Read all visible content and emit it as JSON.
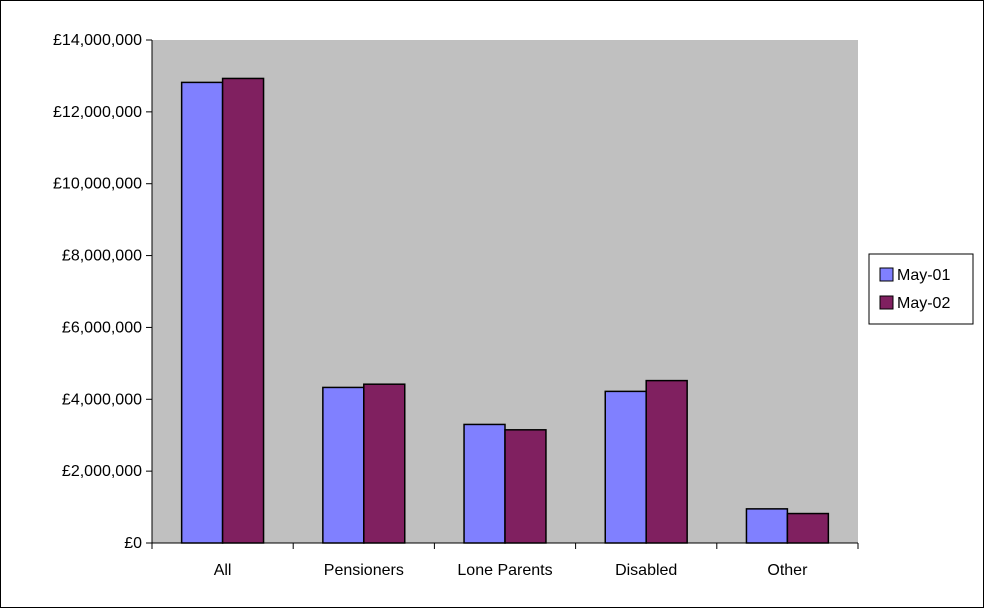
{
  "colors": {
    "plot_background": "#c0c0c0",
    "page_background": "#ffffff",
    "border": "#000000"
  },
  "chart_data": {
    "type": "bar",
    "title": "",
    "xlabel": "",
    "ylabel": "",
    "categories": [
      "All",
      "Pensioners",
      "Lone Parents",
      "Disabled",
      "Other"
    ],
    "series": [
      {
        "name": "May-01",
        "color": "#8080ff",
        "values": [
          12820000,
          4330000,
          3300000,
          4220000,
          950000
        ]
      },
      {
        "name": "May-02",
        "color": "#802060",
        "values": [
          12930000,
          4420000,
          3150000,
          4520000,
          820000
        ]
      }
    ],
    "ylim": [
      0,
      14000000
    ],
    "ytick_step": 2000000,
    "ytick_labels": [
      "£0",
      "£2,000,000",
      "£4,000,000",
      "£6,000,000",
      "£8,000,000",
      "£10,000,000",
      "£12,000,000",
      "£14,000,000"
    ],
    "grid": false,
    "legend": {
      "position": "right"
    }
  }
}
